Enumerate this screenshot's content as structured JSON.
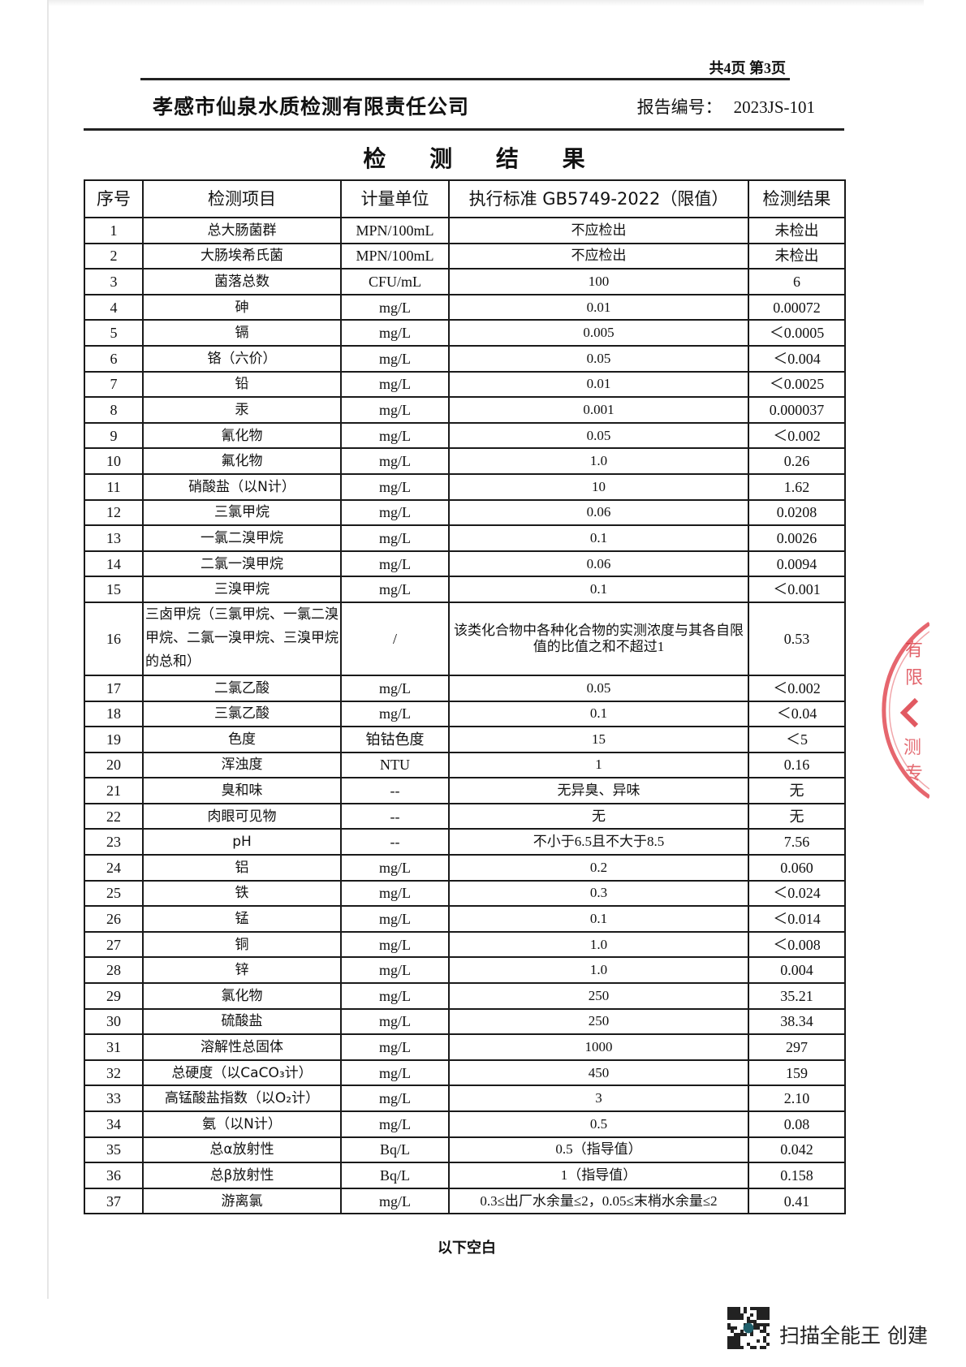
{
  "header": {
    "page_info": "共4页 第3页",
    "company": "孝感市仙泉水质检测有限责任公司",
    "report_no_label": "报告编号：",
    "report_no": "2023JS-101"
  },
  "title": "检 测 结 果",
  "table": {
    "columns": [
      "序号",
      "检测项目",
      "计量单位",
      "执行标准 GB5749-2022（限值）",
      "检测结果"
    ],
    "rows": [
      [
        "1",
        "总大肠菌群",
        "MPN/100mL",
        "不应检出",
        "未检出"
      ],
      [
        "2",
        "大肠埃希氏菌",
        "MPN/100mL",
        "不应检出",
        "未检出"
      ],
      [
        "3",
        "菌落总数",
        "CFU/mL",
        "100",
        "6"
      ],
      [
        "4",
        "砷",
        "mg/L",
        "0.01",
        "0.00072"
      ],
      [
        "5",
        "镉",
        "mg/L",
        "0.005",
        "＜0.0005"
      ],
      [
        "6",
        "铬（六价）",
        "mg/L",
        "0.05",
        "＜0.004"
      ],
      [
        "7",
        "铅",
        "mg/L",
        "0.01",
        "＜0.0025"
      ],
      [
        "8",
        "汞",
        "mg/L",
        "0.001",
        "0.000037"
      ],
      [
        "9",
        "氰化物",
        "mg/L",
        "0.05",
        "＜0.002"
      ],
      [
        "10",
        "氟化物",
        "mg/L",
        "1.0",
        "0.26"
      ],
      [
        "11",
        "硝酸盐（以N计）",
        "mg/L",
        "10",
        "1.62"
      ],
      [
        "12",
        "三氯甲烷",
        "mg/L",
        "0.06",
        "0.0208"
      ],
      [
        "13",
        "一氯二溴甲烷",
        "mg/L",
        "0.1",
        "0.0026"
      ],
      [
        "14",
        "二氯一溴甲烷",
        "mg/L",
        "0.06",
        "0.0094"
      ],
      [
        "15",
        "三溴甲烷",
        "mg/L",
        "0.1",
        "＜0.001"
      ],
      [
        "16",
        "三卤甲烷（三氯甲烷、一氯二溴甲烷、二氯一溴甲烷、三溴甲烷的总和）",
        "/",
        "该类化合物中各种化合物的实测浓度与其各自限值的比值之和不超过1",
        "0.53"
      ],
      [
        "17",
        "二氯乙酸",
        "mg/L",
        "0.05",
        "＜0.002"
      ],
      [
        "18",
        "三氯乙酸",
        "mg/L",
        "0.1",
        "＜0.04"
      ],
      [
        "19",
        "色度",
        "铂钴色度",
        "15",
        "＜5"
      ],
      [
        "20",
        "浑浊度",
        "NTU",
        "1",
        "0.16"
      ],
      [
        "21",
        "臭和味",
        "--",
        "无异臭、异味",
        "无"
      ],
      [
        "22",
        "肉眼可见物",
        "--",
        "无",
        "无"
      ],
      [
        "23",
        "pH",
        "--",
        "不小于6.5且不大于8.5",
        "7.56"
      ],
      [
        "24",
        "铝",
        "mg/L",
        "0.2",
        "0.060"
      ],
      [
        "25",
        "铁",
        "mg/L",
        "0.3",
        "＜0.024"
      ],
      [
        "26",
        "锰",
        "mg/L",
        "0.1",
        "＜0.014"
      ],
      [
        "27",
        "铜",
        "mg/L",
        "1.0",
        "＜0.008"
      ],
      [
        "28",
        "锌",
        "mg/L",
        "1.0",
        "0.004"
      ],
      [
        "29",
        "氯化物",
        "mg/L",
        "250",
        "35.21"
      ],
      [
        "30",
        "硫酸盐",
        "mg/L",
        "250",
        "38.34"
      ],
      [
        "31",
        "溶解性总固体",
        "mg/L",
        "1000",
        "297"
      ],
      [
        "32",
        "总硬度（以CaCO₃计）",
        "mg/L",
        "450",
        "159"
      ],
      [
        "33",
        "高锰酸盐指数（以O₂计）",
        "mg/L",
        "3",
        "2.10"
      ],
      [
        "34",
        "氨（以N计）",
        "mg/L",
        "0.5",
        "0.08"
      ],
      [
        "35",
        "总α放射性",
        "Bq/L",
        "0.5（指导值）",
        "0.042"
      ],
      [
        "36",
        "总β放射性",
        "Bq/L",
        "1（指导值）",
        "0.158"
      ],
      [
        "37",
        "游离氯",
        "mg/L",
        "0.3≤出厂水余量≤2，0.05≤末梢水余量≤2",
        "0.41"
      ]
    ]
  },
  "footer_note": "以下空白",
  "stamp": {
    "color": "#d9303a",
    "partial_text": "有限 检测专"
  },
  "scanner_watermark": {
    "text": "扫描全能王 创建",
    "icon": "qr-code-icon"
  }
}
